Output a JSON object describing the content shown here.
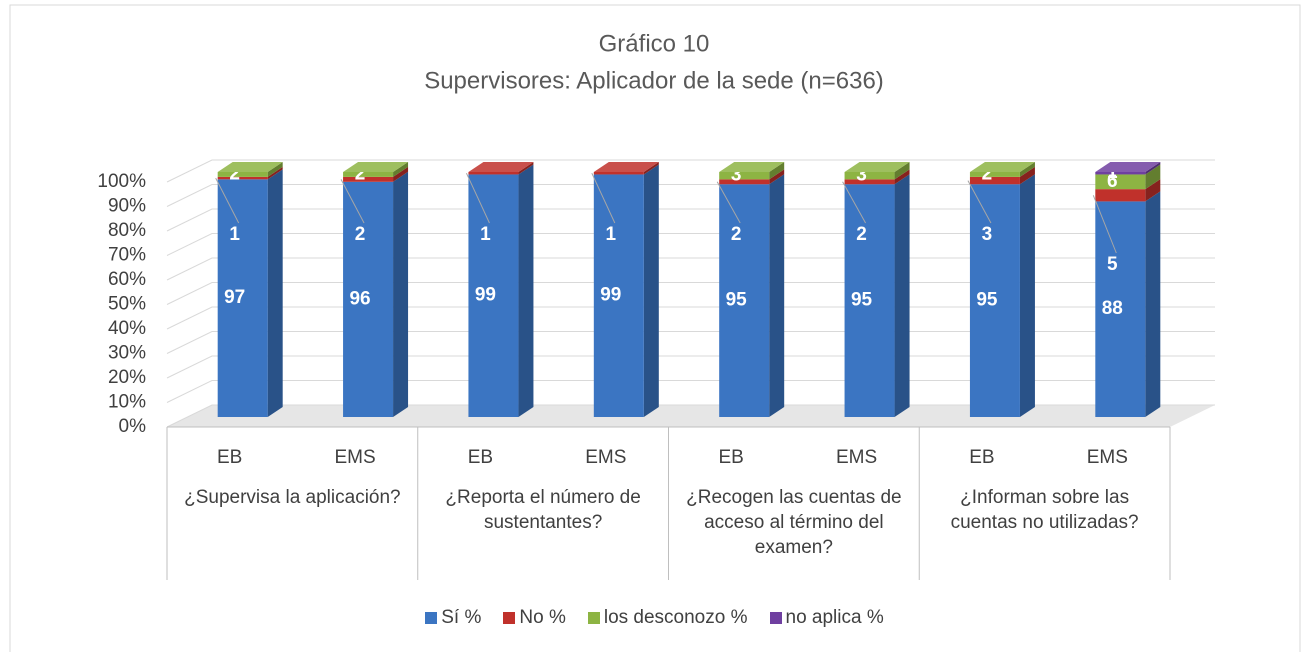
{
  "chart_data": {
    "type": "bar",
    "stacked": true,
    "title": "Gráfico 10",
    "subtitle": "Supervisores: Aplicador de la sede (n=636)",
    "categories": [
      "EB",
      "EMS",
      "EB",
      "EMS",
      "EB",
      "EMS",
      "EB",
      "EMS"
    ],
    "groups": [
      "¿Supervisa la aplicación?",
      "¿Reporta el número de sustentantes?",
      "¿Recogen las cuentas de acceso al término del examen?",
      "¿Informan sobre las cuentas no utilizadas?"
    ],
    "series": [
      {
        "name": "Sí %",
        "color": "#3b75c2",
        "values": [
          97,
          96,
          99,
          99,
          95,
          95,
          95,
          88
        ]
      },
      {
        "name": "No %",
        "color": "#c0312b",
        "values": [
          1,
          2,
          1,
          1,
          2,
          2,
          3,
          5
        ]
      },
      {
        "name": "los desconozo %",
        "color": "#8db443",
        "values": [
          2,
          2,
          0,
          0,
          3,
          3,
          2,
          6
        ]
      },
      {
        "name": "no aplica %",
        "color": "#6f3fa0",
        "values": [
          0,
          0,
          0,
          0,
          0,
          0,
          0,
          1
        ]
      }
    ],
    "ylim": [
      0,
      100
    ],
    "yticks": [
      {
        "value": 0,
        "label": "0%"
      },
      {
        "value": 10,
        "label": "10%"
      },
      {
        "value": 20,
        "label": "20%"
      },
      {
        "value": 30,
        "label": "30%"
      },
      {
        "value": 40,
        "label": "40%"
      },
      {
        "value": 50,
        "label": "50%"
      },
      {
        "value": 60,
        "label": "60%"
      },
      {
        "value": 70,
        "label": "70%"
      },
      {
        "value": 80,
        "label": "80%"
      },
      {
        "value": 90,
        "label": "90%"
      },
      {
        "value": 100,
        "label": "100%"
      }
    ],
    "grid": true,
    "legend": "bottom"
  }
}
